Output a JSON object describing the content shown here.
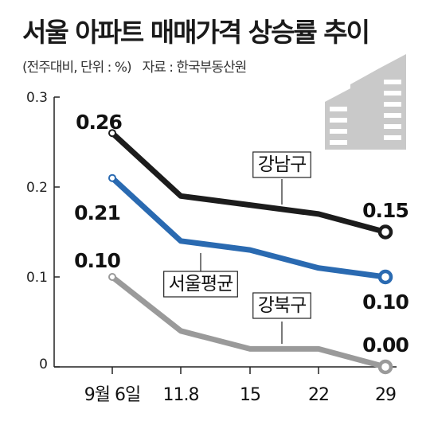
{
  "header": {
    "title": "서울 아파트 매매가격 상승률 추이",
    "unit_note": "(전주대비, 단위 : %)",
    "source_note": "자료 : 한국부동산원"
  },
  "chart_data": {
    "type": "line",
    "categories": [
      "9월 6일",
      "11.8",
      "15",
      "22",
      "29"
    ],
    "ylim": [
      0,
      0.3
    ],
    "yticks": [
      "0",
      "0.1",
      "0.2",
      "0.3"
    ],
    "grid": false,
    "series": [
      {
        "name": "강남구",
        "values": [
          0.26,
          0.19,
          0.18,
          0.17,
          0.15
        ],
        "labels": [
          "0.26",
          "",
          "",
          "",
          "0.15"
        ],
        "color": "#1c1c1c"
      },
      {
        "name": "서울평균",
        "values": [
          0.21,
          0.14,
          0.13,
          0.11,
          0.1
        ],
        "labels": [
          "0.21",
          "",
          "",
          "",
          "0.10"
        ],
        "color": "#2a6ab1"
      },
      {
        "name": "강북구",
        "values": [
          0.1,
          0.04,
          0.02,
          0.02,
          0.0
        ],
        "labels": [
          "0.10",
          "",
          "",
          "",
          "0.00"
        ],
        "color": "#9a9a9a"
      }
    ],
    "decoration": {
      "icon": "building-icon",
      "color": "#c9c9c9"
    }
  }
}
